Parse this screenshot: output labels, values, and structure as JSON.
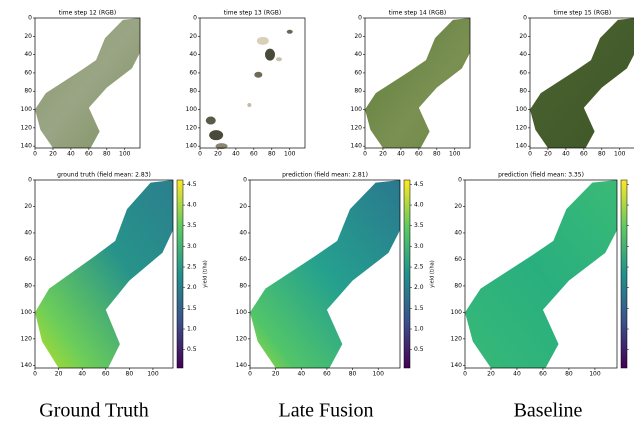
{
  "top_panels": [
    {
      "title": "time step 12 (RGB)"
    },
    {
      "title": "time step 13 (RGB)"
    },
    {
      "title": "time step 14 (RGB)"
    },
    {
      "title": "time step 15 (RGB)"
    }
  ],
  "bottom_panels": [
    {
      "title": "ground truth (field mean: 2.83)",
      "colorbar_label": "yield (t/ha)",
      "colorbar_ticks": [
        "0.5",
        "1.0",
        "1.5",
        "2.0",
        "2.5",
        "3.0",
        "3.5",
        "4.0",
        "4.5"
      ]
    },
    {
      "title": "prediction (field mean: 2.81)",
      "colorbar_label": "yield (t/ha)",
      "colorbar_ticks": [
        "0.5",
        "1.0",
        "1.5",
        "2.0",
        "2.5",
        "3.0",
        "3.5",
        "4.0",
        "4.5"
      ]
    },
    {
      "title": "prediction (field mean: 3.35)"
    }
  ],
  "x_tick_labels": [
    "0",
    "20",
    "40",
    "60",
    "80",
    "100"
  ],
  "y_tick_labels": [
    "0",
    "20",
    "40",
    "60",
    "80",
    "100",
    "120",
    "140"
  ],
  "captions": [
    "Ground Truth",
    "Late Fusion",
    "Baseline"
  ]
}
